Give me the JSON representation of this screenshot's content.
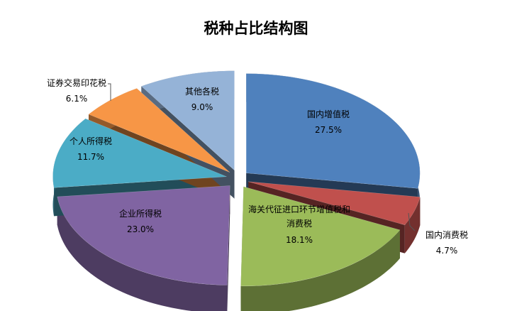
{
  "chart_data": {
    "type": "pie",
    "title": "税种占比结构图",
    "categories": [
      "国内增值税",
      "国内消费税",
      "海关代征进口环节增值税和消费税",
      "企业所得税",
      "个人所得税",
      "证券交易印花税",
      "其他各税"
    ],
    "values": [
      27.5,
      4.7,
      18.1,
      23.0,
      11.7,
      6.1,
      9.0
    ],
    "value_labels": [
      "27.5%",
      "4.7%",
      "18.1%",
      "23.0%",
      "11.7%",
      "6.1%",
      "9.0%"
    ],
    "colors": [
      "#4f81bd",
      "#c0504d",
      "#9bbb59",
      "#8064a2",
      "#4bacc6",
      "#f79646",
      "#95b3d7"
    ]
  }
}
